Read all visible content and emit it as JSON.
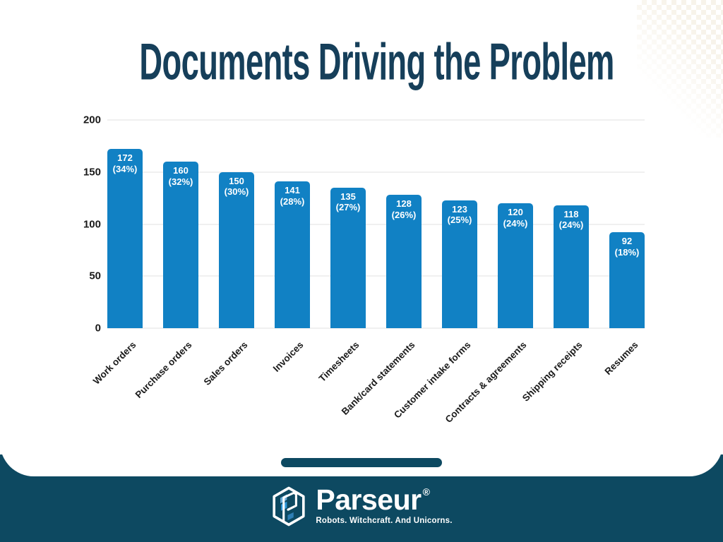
{
  "slide": {
    "title": "Documents Driving the Problem"
  },
  "chart_data": {
    "type": "bar",
    "title": "Documents Driving the Problem",
    "categories": [
      "Work orders",
      "Purchase orders",
      "Sales orders",
      "Invoices",
      "Timesheets",
      "Bank/card statements",
      "Customer intake forms",
      "Contracts & agreements",
      "Shipping receipts",
      "Resumes"
    ],
    "values": [
      172,
      160,
      150,
      141,
      135,
      128,
      123,
      120,
      118,
      92
    ],
    "percentages": [
      "34%",
      "32%",
      "30%",
      "28%",
      "27%",
      "26%",
      "25%",
      "24%",
      "24%",
      "18%"
    ],
    "xlabel": "",
    "ylabel": "",
    "yticks": [
      0,
      50,
      100,
      150,
      200
    ],
    "ylim": [
      0,
      200
    ],
    "grid": true,
    "legend_position": "none",
    "bar_color": "#1181c4"
  },
  "footer": {
    "brand": "Parseur",
    "reg_mark": "®",
    "tagline": "Robots. Witchcraft. And Unicorns."
  },
  "colors": {
    "title_text": "#163f5a",
    "bar_fill": "#1181c4",
    "bar_value_text": "#ffffff",
    "axis_text": "#1a1a1a",
    "footer_bg": "#0d4961",
    "gridline": "#f0f0f0",
    "corner_pattern": "#f5efe3"
  }
}
